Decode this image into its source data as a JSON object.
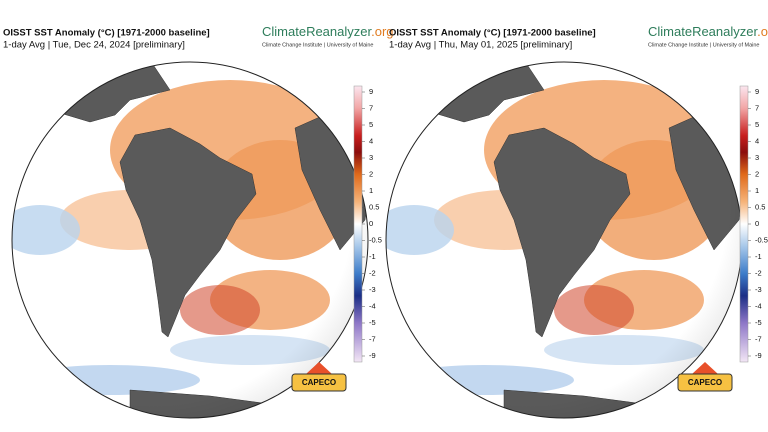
{
  "panels": [
    {
      "title": "OISST SST Anomaly (°C) [1971-2000 baseline]",
      "subtitle": "1-day Avg | Tue, Dec 24, 2024 [preliminary]",
      "brand": {
        "name": "ClimateReanalyzer",
        "suffix": ".org",
        "subtitle": "Climate Change Institute | University of Maine"
      },
      "colorbar": {
        "ticks": [
          9,
          7,
          5,
          4,
          3,
          2,
          1,
          0.5,
          0,
          -0.5,
          -1,
          -2,
          -3,
          -4,
          -5,
          -7,
          -9
        ]
      },
      "logo": "CAPECO"
    },
    {
      "title": "OISST SST Anomaly (°C) [1971-2000 baseline]",
      "subtitle": "1-day Avg | Thu, May 01, 2025 [preliminary]",
      "brand": {
        "name": "ClimateReanalyzer",
        "suffix": ".org",
        "subtitle": "Climate Change Institute | University of Maine"
      },
      "colorbar": {
        "ticks": [
          9,
          7,
          5,
          4,
          3,
          2,
          1,
          0.5,
          0,
          -0.5,
          -1,
          -2,
          -3,
          -4,
          -5,
          -7,
          -9
        ]
      },
      "logo": "CAPECO"
    }
  ]
}
